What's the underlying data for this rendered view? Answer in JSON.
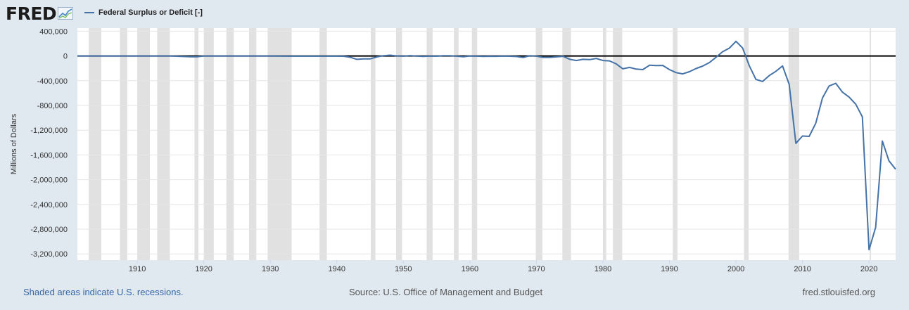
{
  "header": {
    "logo_text": "FRED",
    "logo_icon": "chart-line-icon",
    "legend_label": "Federal Surplus or Deficit [-]"
  },
  "footer": {
    "recession_note": "Shaded areas indicate U.S. recessions.",
    "source": "Source: U.S. Office of Management and Budget",
    "site": "fred.stlouisfed.org"
  },
  "colors": {
    "background": "#e1e9f0",
    "plot_background": "#ffffff",
    "series": "#4572a7",
    "recession": "#e1e1e1",
    "zero_line": "#000000"
  },
  "chart_data": {
    "type": "line",
    "title": "",
    "xlabel": "",
    "ylabel": "Millions of Dollars",
    "xlim": [
      1901,
      2024
    ],
    "ylim": [
      -3300000,
      450000
    ],
    "y_ticks": [
      400000,
      0,
      -400000,
      -800000,
      -1200000,
      -1600000,
      -2000000,
      -2400000,
      -2800000,
      -3200000
    ],
    "y_tick_labels": [
      "400,000",
      "0",
      "-400,000",
      "-800,000",
      "-1,200,000",
      "-1,600,000",
      "-2,000,000",
      "-2,400,000",
      "-2,800,000",
      "-3,200,000"
    ],
    "x_ticks": [
      1910,
      1920,
      1930,
      1940,
      1950,
      1960,
      1970,
      1980,
      1990,
      2000,
      2010,
      2020
    ],
    "x_tick_labels": [
      "1910",
      "1920",
      "1930",
      "1940",
      "1950",
      "1960",
      "1970",
      "1980",
      "1990",
      "2000",
      "2010",
      "2020"
    ],
    "grid": true,
    "legend_position": "top-left",
    "recessions": [
      [
        1902.7,
        1904.6
      ],
      [
        1907.4,
        1908.5
      ],
      [
        1910.0,
        1911.9
      ],
      [
        1913.0,
        1914.9
      ],
      [
        1918.6,
        1919.2
      ],
      [
        1920.0,
        1921.5
      ],
      [
        1923.4,
        1924.5
      ],
      [
        1926.8,
        1927.9
      ],
      [
        1929.6,
        1933.2
      ],
      [
        1937.4,
        1938.5
      ],
      [
        1945.1,
        1945.8
      ],
      [
        1948.9,
        1949.8
      ],
      [
        1953.5,
        1954.4
      ],
      [
        1957.6,
        1958.3
      ],
      [
        1960.3,
        1961.1
      ],
      [
        1969.9,
        1970.9
      ],
      [
        1973.9,
        1975.2
      ],
      [
        1980.0,
        1980.5
      ],
      [
        1981.5,
        1982.9
      ],
      [
        1990.5,
        1991.2
      ],
      [
        2001.2,
        2001.9
      ],
      [
        2007.9,
        2009.5
      ],
      [
        2020.1,
        2020.3
      ]
    ],
    "series": [
      {
        "name": "Federal Surplus or Deficit [-]",
        "x": [
          1901,
          1905,
          1910,
          1915,
          1917,
          1918,
          1919,
          1920,
          1921,
          1925,
          1930,
          1933,
          1935,
          1940,
          1941,
          1942,
          1943,
          1944,
          1945,
          1946,
          1947,
          1948,
          1949,
          1950,
          1951,
          1952,
          1953,
          1954,
          1955,
          1956,
          1957,
          1958,
          1959,
          1960,
          1961,
          1962,
          1963,
          1964,
          1965,
          1966,
          1967,
          1968,
          1969,
          1970,
          1971,
          1972,
          1973,
          1974,
          1975,
          1976,
          1977,
          1978,
          1979,
          1980,
          1981,
          1982,
          1983,
          1984,
          1985,
          1986,
          1987,
          1988,
          1989,
          1990,
          1991,
          1992,
          1993,
          1994,
          1995,
          1996,
          1997,
          1998,
          1999,
          2000,
          2001,
          2002,
          2003,
          2004,
          2005,
          2006,
          2007,
          2008,
          2009,
          2010,
          2011,
          2012,
          2013,
          2014,
          2015,
          2016,
          2017,
          2018,
          2019,
          2020,
          2021,
          2022,
          2023,
          2024
        ],
        "values": [
          0,
          0,
          0,
          0,
          -9000,
          -13000,
          -13000,
          0,
          0,
          0,
          0,
          -3000,
          -3000,
          -3000,
          -5000,
          -20000,
          -55000,
          -47000,
          -48000,
          -16000,
          4000,
          12000,
          1000,
          -3000,
          6000,
          -2000,
          -7000,
          -1000,
          -3000,
          4000,
          3000,
          -3000,
          -13000,
          0,
          -3000,
          -7000,
          -5000,
          -6000,
          -1000,
          -4000,
          -9000,
          -25000,
          3000,
          -3000,
          -23000,
          -23000,
          -15000,
          -6000,
          -53000,
          -74000,
          -54000,
          -59000,
          -41000,
          -74000,
          -79000,
          -128000,
          -208000,
          -185000,
          -212000,
          -221000,
          -150000,
          -155000,
          -153000,
          -221000,
          -269000,
          -290000,
          -255000,
          -203000,
          -164000,
          -107000,
          -22000,
          69000,
          126000,
          236000,
          128000,
          -158000,
          -378000,
          -413000,
          -318000,
          -248000,
          -161000,
          -459000,
          -1413000,
          -1294000,
          -1300000,
          -1087000,
          -680000,
          -485000,
          -442000,
          -585000,
          -665000,
          -779000,
          -984000,
          -3132000,
          -2772000,
          -1375000,
          -1695000,
          -1832000
        ]
      }
    ]
  }
}
